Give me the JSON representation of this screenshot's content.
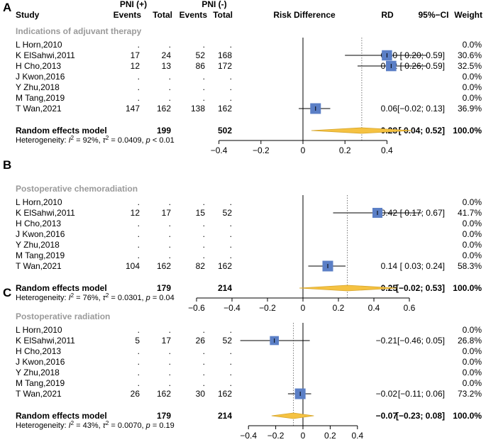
{
  "header": {
    "study": "Study",
    "pni_pos": "PNI (+)",
    "pni_neg": "PNI (-)",
    "events": "Events",
    "total": "Total",
    "plot": "Risk Difference",
    "rd": "RD",
    "ci": "95%−CI",
    "weight": "Weight"
  },
  "colors": {
    "box": "#5b7fc6",
    "diamond": "#f5c242",
    "diamond_edge": "#d6a52a"
  },
  "chart_data": [
    {
      "type": "forest",
      "panel": "A",
      "title": "Indications of adjuvant therapy",
      "xlim": [
        -0.4,
        0.4
      ],
      "ticks": [
        "−0.4",
        "−0.2",
        "0",
        "0.2",
        "0.4"
      ],
      "tick_values": [
        -0.4,
        -0.2,
        0,
        0.2,
        0.4
      ],
      "studies": [
        {
          "name": "L Horn,2010",
          "ev1": ".",
          "n1": ".",
          "ev2": ".",
          "n2": ".",
          "rd_text": "",
          "ci_text": "",
          "w_text": "0.0%",
          "rd": null,
          "lo": null,
          "hi": null,
          "w": 0
        },
        {
          "name": "K ElSahwi,2011",
          "ev1": "17",
          "n1": "24",
          "ev2": "52",
          "n2": "168",
          "rd_text": "0.40",
          "ci_text": "[ 0.20; 0.59]",
          "w_text": "30.6%",
          "rd": 0.4,
          "lo": 0.2,
          "hi": 0.59,
          "w": 30.6
        },
        {
          "name": "H Cho,2013",
          "ev1": "12",
          "n1": "13",
          "ev2": "86",
          "n2": "172",
          "rd_text": "0.42",
          "ci_text": "[ 0.26; 0.59]",
          "w_text": "32.5%",
          "rd": 0.42,
          "lo": 0.26,
          "hi": 0.59,
          "w": 32.5
        },
        {
          "name": "J Kwon,2016",
          "ev1": ".",
          "n1": ".",
          "ev2": ".",
          "n2": ".",
          "rd_text": "",
          "ci_text": "",
          "w_text": "0.0%",
          "rd": null,
          "lo": null,
          "hi": null,
          "w": 0
        },
        {
          "name": "Y Zhu,2018",
          "ev1": ".",
          "n1": ".",
          "ev2": ".",
          "n2": ".",
          "rd_text": "",
          "ci_text": "",
          "w_text": "0.0%",
          "rd": null,
          "lo": null,
          "hi": null,
          "w": 0
        },
        {
          "name": "M Tang,2019",
          "ev1": ".",
          "n1": ".",
          "ev2": ".",
          "n2": ".",
          "rd_text": "",
          "ci_text": "",
          "w_text": "0.0%",
          "rd": null,
          "lo": null,
          "hi": null,
          "w": 0
        },
        {
          "name": "T Wan,2021",
          "ev1": "147",
          "n1": "162",
          "ev2": "138",
          "n2": "162",
          "rd_text": "0.06",
          "ci_text": "[−0.02; 0.13]",
          "w_text": "36.9%",
          "rd": 0.06,
          "lo": -0.02,
          "hi": 0.13,
          "w": 36.9
        }
      ],
      "summary": {
        "label": "Random effects model",
        "n1": "199",
        "n2": "502",
        "rd_text": "0.28",
        "ci_text": "[ 0.04; 0.52]",
        "w_text": "100.0%",
        "rd": 0.28,
        "lo": 0.04,
        "hi": 0.52
      },
      "heterogeneity": {
        "prefix": "Heterogeneity: ",
        "I2": "92%",
        "tau2": "0.0409",
        "p": "< 0.01"
      }
    },
    {
      "type": "forest",
      "panel": "B",
      "title": "Postoperative chemoradiation",
      "xlim": [
        -0.6,
        0.6
      ],
      "ticks": [
        "−0.6",
        "−0.4",
        "−0.2",
        "0",
        "0.2",
        "0.4",
        "0.6"
      ],
      "tick_values": [
        -0.6,
        -0.4,
        -0.2,
        0,
        0.2,
        0.4,
        0.6
      ],
      "studies": [
        {
          "name": "L Horn,2010",
          "ev1": ".",
          "n1": ".",
          "ev2": ".",
          "n2": ".",
          "rd_text": "",
          "ci_text": "",
          "w_text": "0.0%",
          "rd": null,
          "lo": null,
          "hi": null,
          "w": 0
        },
        {
          "name": "K ElSahwi,2011",
          "ev1": "12",
          "n1": "17",
          "ev2": "15",
          "n2": "52",
          "rd_text": "0.42",
          "ci_text": "[ 0.17; 0.67]",
          "w_text": "41.7%",
          "rd": 0.42,
          "lo": 0.17,
          "hi": 0.67,
          "w": 41.7
        },
        {
          "name": "H Cho,2013",
          "ev1": ".",
          "n1": ".",
          "ev2": ".",
          "n2": ".",
          "rd_text": "",
          "ci_text": "",
          "w_text": "0.0%",
          "rd": null,
          "lo": null,
          "hi": null,
          "w": 0
        },
        {
          "name": "J Kwon,2016",
          "ev1": ".",
          "n1": ".",
          "ev2": ".",
          "n2": ".",
          "rd_text": "",
          "ci_text": "",
          "w_text": "0.0%",
          "rd": null,
          "lo": null,
          "hi": null,
          "w": 0
        },
        {
          "name": "Y Zhu,2018",
          "ev1": ".",
          "n1": ".",
          "ev2": ".",
          "n2": ".",
          "rd_text": "",
          "ci_text": "",
          "w_text": "0.0%",
          "rd": null,
          "lo": null,
          "hi": null,
          "w": 0
        },
        {
          "name": "M Tang,2019",
          "ev1": ".",
          "n1": ".",
          "ev2": ".",
          "n2": ".",
          "rd_text": "",
          "ci_text": "",
          "w_text": "0.0%",
          "rd": null,
          "lo": null,
          "hi": null,
          "w": 0
        },
        {
          "name": "T Wan,2021",
          "ev1": "104",
          "n1": "162",
          "ev2": "82",
          "n2": "162",
          "rd_text": "0.14",
          "ci_text": "[ 0.03; 0.24]",
          "w_text": "58.3%",
          "rd": 0.14,
          "lo": 0.03,
          "hi": 0.24,
          "w": 58.3
        }
      ],
      "summary": {
        "label": "Random effects model",
        "n1": "179",
        "n2": "214",
        "rd_text": "0.25",
        "ci_text": "[−0.02; 0.53]",
        "w_text": "100.0%",
        "rd": 0.25,
        "lo": -0.02,
        "hi": 0.53
      },
      "heterogeneity": {
        "prefix": "Heterogeneity: ",
        "I2": "76%",
        "tau2": "0.0301",
        "p": "= 0.04"
      }
    },
    {
      "type": "forest",
      "panel": "C",
      "title": "Postoperative radiation",
      "xlim": [
        -0.4,
        0.4
      ],
      "ticks": [
        "−0.4",
        "−0.2",
        "0",
        "0.2",
        "0.4"
      ],
      "tick_values": [
        -0.4,
        -0.2,
        0,
        0.2,
        0.4
      ],
      "studies": [
        {
          "name": "L Horn,2010",
          "ev1": ".",
          "n1": ".",
          "ev2": ".",
          "n2": ".",
          "rd_text": "",
          "ci_text": "",
          "w_text": "0.0%",
          "rd": null,
          "lo": null,
          "hi": null,
          "w": 0
        },
        {
          "name": "K ElSahwi,2011",
          "ev1": "5",
          "n1": "17",
          "ev2": "26",
          "n2": "52",
          "rd_text": "−0.21",
          "ci_text": "[−0.46; 0.05]",
          "w_text": "26.8%",
          "rd": -0.21,
          "lo": -0.46,
          "hi": 0.05,
          "w": 26.8
        },
        {
          "name": "H Cho,2013",
          "ev1": ".",
          "n1": ".",
          "ev2": ".",
          "n2": ".",
          "rd_text": "",
          "ci_text": "",
          "w_text": "0.0%",
          "rd": null,
          "lo": null,
          "hi": null,
          "w": 0
        },
        {
          "name": "J Kwon,2016",
          "ev1": ".",
          "n1": ".",
          "ev2": ".",
          "n2": ".",
          "rd_text": "",
          "ci_text": "",
          "w_text": "0.0%",
          "rd": null,
          "lo": null,
          "hi": null,
          "w": 0
        },
        {
          "name": "Y Zhu,2018",
          "ev1": ".",
          "n1": ".",
          "ev2": ".",
          "n2": ".",
          "rd_text": "",
          "ci_text": "",
          "w_text": "0.0%",
          "rd": null,
          "lo": null,
          "hi": null,
          "w": 0
        },
        {
          "name": "M Tang,2019",
          "ev1": ".",
          "n1": ".",
          "ev2": ".",
          "n2": ".",
          "rd_text": "",
          "ci_text": "",
          "w_text": "0.0%",
          "rd": null,
          "lo": null,
          "hi": null,
          "w": 0
        },
        {
          "name": "T Wan,2021",
          "ev1": "26",
          "n1": "162",
          "ev2": "30",
          "n2": "162",
          "rd_text": "−0.02",
          "ci_text": "[−0.11; 0.06]",
          "w_text": "73.2%",
          "rd": -0.02,
          "lo": -0.11,
          "hi": 0.06,
          "w": 73.2
        }
      ],
      "summary": {
        "label": "Random effects model",
        "n1": "179",
        "n2": "214",
        "rd_text": "−0.07",
        "ci_text": "[−0.23; 0.08]",
        "w_text": "100.0%",
        "rd": -0.07,
        "lo": -0.23,
        "hi": 0.08
      },
      "heterogeneity": {
        "prefix": "Heterogeneity: ",
        "I2": "43%",
        "tau2": "0.0070",
        "p": "= 0.19"
      }
    }
  ]
}
